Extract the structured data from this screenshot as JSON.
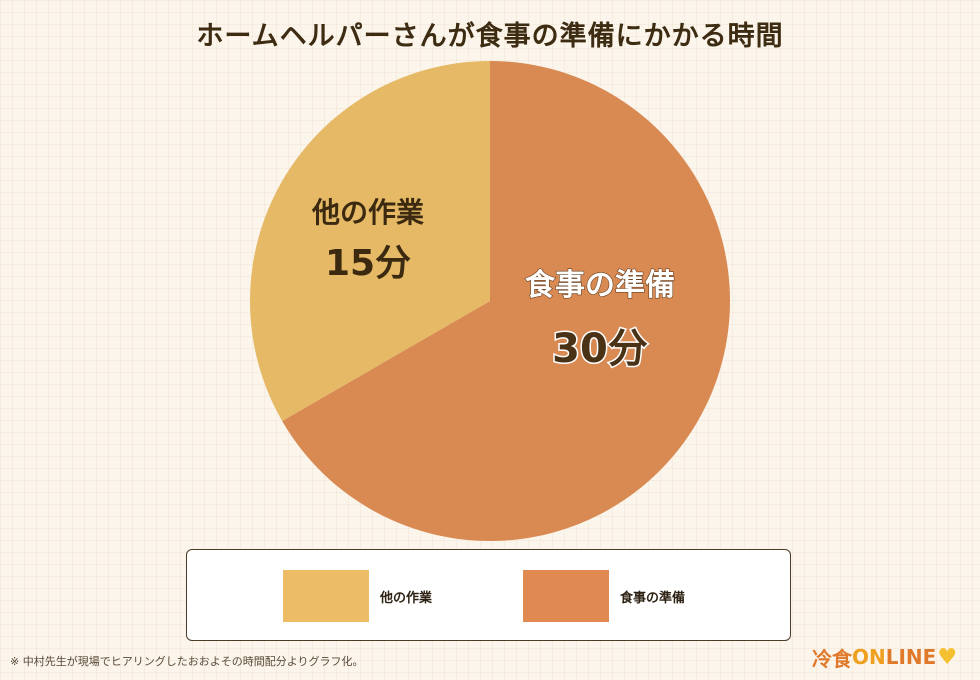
{
  "title": "ホームヘルパーさんが食事の準備にかかる時間",
  "chart_data": {
    "type": "pie",
    "title": "ホームヘルパーさんが食事の準備にかかる時間",
    "slices": [
      {
        "label": "食事の準備",
        "value": 30,
        "value_label": "30分",
        "color": "#d98a52"
      },
      {
        "label": "他の作業",
        "value": 15,
        "value_label": "15分",
        "color": "#e5b966"
      }
    ],
    "legend": {
      "placement": "bottom",
      "entries": [
        {
          "label": "他の作業",
          "color": "#ecbd66"
        },
        {
          "label": "食事の準備",
          "color": "#e08a52"
        }
      ]
    }
  },
  "note": "※ 中村先生が現場でヒアリングしたおおよその時間配分よりグラフ化。",
  "logo": {
    "kanji": "冷食",
    "on": "ON",
    "line": "LINE"
  }
}
